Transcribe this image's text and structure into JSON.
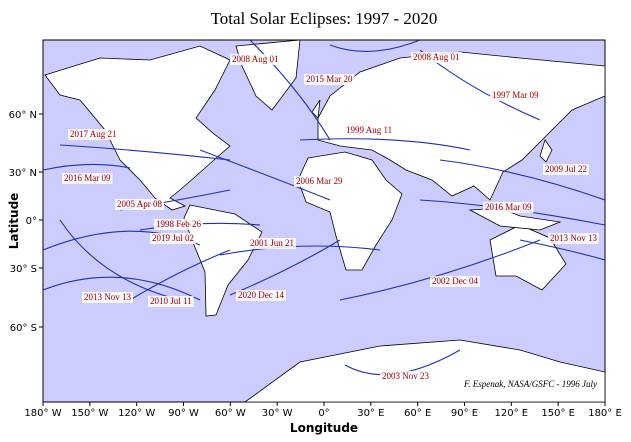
{
  "header": {
    "title": "Total Solar Eclipses:  1997 - 2020"
  },
  "axes": {
    "x_label": "Longitude",
    "y_label": "Latitude",
    "x_ticks": [
      "180° W",
      "150° W",
      "120° W",
      "90° W",
      "60° W",
      "30° W",
      "0°",
      "30° E",
      "60° E",
      "90° E",
      "120° E",
      "150° E",
      "180° E"
    ],
    "y_ticks": [
      "60° N",
      "30° N",
      "0°",
      "30° S",
      "60° S"
    ]
  },
  "eclipses": [
    "2008 Aug 01",
    "2008 Aug 01",
    "2015 Mar 20",
    "1997 Mar 09",
    "1999 Aug 11",
    "2017 Aug 21",
    "2009 Jul 22",
    "2016 Mar 09",
    "2006 Mar 29",
    "2005 Apr 08",
    "2016 Mar 09",
    "1998 Feb 26",
    "2019 Jul 02",
    "2001 Jun 21",
    "2013 Nov 13",
    "2002 Dec 04",
    "2013 Nov 13",
    "2020 Dec 14",
    "2010 Jul 11",
    "2003 Nov 23"
  ],
  "credit": "F. Espenak, NASA/GSFC - 1996 July"
}
